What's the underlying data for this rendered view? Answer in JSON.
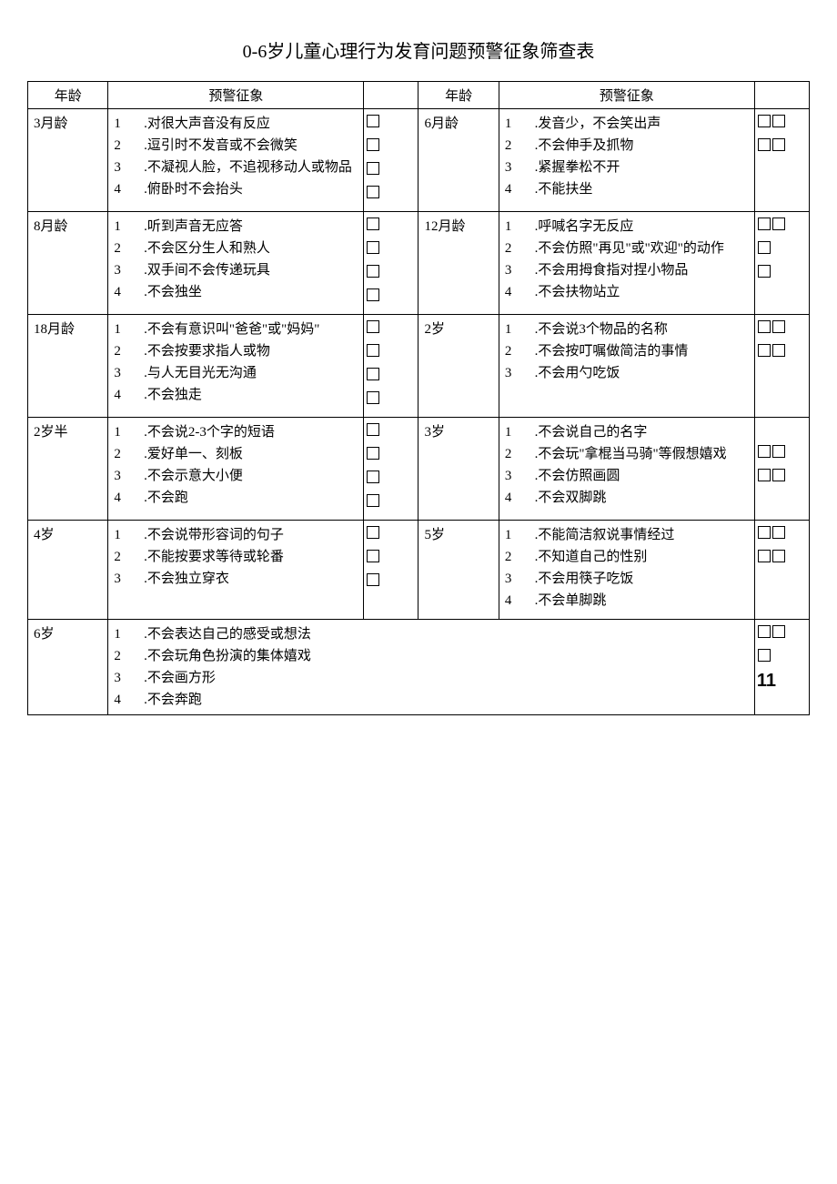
{
  "title": "0-6岁儿童心理行为发育问题预警征象筛查表",
  "headers": {
    "age": "年龄",
    "sign": "预警征象"
  },
  "rows": [
    {
      "left": {
        "age": "3月龄",
        "items": [
          {
            "n": "1",
            "t": ".对很大声音没有反应",
            "c": 1
          },
          {
            "n": "2",
            "t": ".逗引时不发音或不会微笑",
            "c": 1
          },
          {
            "n": "3",
            "t": ".不凝视人脸，不追视移动人或物品",
            "c": 1
          },
          {
            "n": "4",
            "t": ".俯卧时不会抬头",
            "c": 1
          }
        ]
      },
      "right": {
        "age": "6月龄",
        "items": [
          {
            "n": "1",
            "t": ".发音少，不会笑出声",
            "c": 2
          },
          {
            "n": "2",
            "t": ".不会伸手及抓物",
            "c": 2
          },
          {
            "n": "3",
            "t": ".紧握拳松不开",
            "c": 0
          },
          {
            "n": "4",
            "t": ".不能扶坐",
            "c": 0
          }
        ]
      }
    },
    {
      "left": {
        "age": "8月龄",
        "items": [
          {
            "n": "1",
            "t": ".听到声音无应答",
            "c": 1
          },
          {
            "n": "2",
            "t": ".不会区分生人和熟人",
            "c": 1
          },
          {
            "n": "3",
            "t": ".双手间不会传递玩具",
            "c": 1
          },
          {
            "n": "4",
            "t": ".不会独坐",
            "c": 1
          }
        ]
      },
      "right": {
        "age": "12月龄",
        "items": [
          {
            "n": "1",
            "t": ".呼喊名字无反应",
            "c": 2
          },
          {
            "n": "2",
            "t": ".不会仿照\"再见\"或\"欢迎\"的动作",
            "c": 1
          },
          {
            "n": "3",
            "t": ".不会用拇食指对捏小物品",
            "c": 1
          },
          {
            "n": "4",
            "t": ".不会扶物站立",
            "c": 0
          }
        ]
      }
    },
    {
      "left": {
        "age": "18月龄",
        "items": [
          {
            "n": "1",
            "t": ".不会有意识叫\"爸爸\"或\"妈妈\"",
            "c": 1
          },
          {
            "n": "2",
            "t": ".不会按要求指人或物",
            "c": 1
          },
          {
            "n": "3",
            "t": ".与人无目光无沟通",
            "c": 1
          },
          {
            "n": "4",
            "t": ".不会独走",
            "c": 1
          }
        ]
      },
      "right": {
        "age": "2岁",
        "items": [
          {
            "n": "1",
            "t": ".不会说3个物品的名称",
            "c": 2
          },
          {
            "n": "2",
            "t": ".不会按叮嘱做简洁的事情",
            "c": 2
          },
          {
            "n": "3",
            "t": ".不会用勺吃饭",
            "c": 0
          }
        ]
      }
    },
    {
      "left": {
        "age": "2岁半",
        "items": [
          {
            "n": "1",
            "t": ".不会说2-3个字的短语",
            "c": 1
          },
          {
            "n": "2",
            "t": ".爱好单一、刻板",
            "c": 1
          },
          {
            "n": "3",
            "t": ".不会示意大小便",
            "c": 1
          },
          {
            "n": "4",
            "t": ".不会跑",
            "c": 1
          }
        ]
      },
      "right": {
        "age": "3岁",
        "items": [
          {
            "n": "1",
            "t": ".不会说自己的名字",
            "c": 0
          },
          {
            "n": "2",
            "t": ".不会玩\"拿棍当马骑\"等假想嬉戏",
            "c": 2
          },
          {
            "n": "3",
            "t": ".不会仿照画圆",
            "c": 2
          },
          {
            "n": "4",
            "t": ".不会双脚跳",
            "c": 0
          }
        ]
      }
    },
    {
      "left": {
        "age": "4岁",
        "items": [
          {
            "n": "1",
            "t": ".不会说带形容词的句子",
            "c": 1
          },
          {
            "n": "2",
            "t": ".不能按要求等待或轮番",
            "c": 1,
            "extra": 1
          },
          {
            "n": "3",
            "t": ".不会独立穿衣",
            "c": 1,
            "extra": 1
          }
        ]
      },
      "right": {
        "age": "5岁",
        "items": [
          {
            "n": "1",
            "t": ".不能简洁叙说事情经过",
            "c": 2
          },
          {
            "n": "2",
            "t": ".不知道自己的性别",
            "c": 2
          },
          {
            "n": "3",
            "t": ".不会用筷子吃饭",
            "c": 0
          },
          {
            "n": "4",
            "t": ".不会单脚跳",
            "c": 0
          }
        ]
      }
    }
  ],
  "lastRow": {
    "age": "6岁",
    "items": [
      {
        "n": "1",
        "t": ".不会表达自己的感受或想法"
      },
      {
        "n": "2",
        "t": ".不会玩角色扮演的集体嬉戏"
      },
      {
        "n": "3",
        "t": ".不会画方形"
      },
      {
        "n": "4",
        "t": ".不会奔跑"
      }
    ],
    "checks": "special"
  },
  "eleven": "11"
}
